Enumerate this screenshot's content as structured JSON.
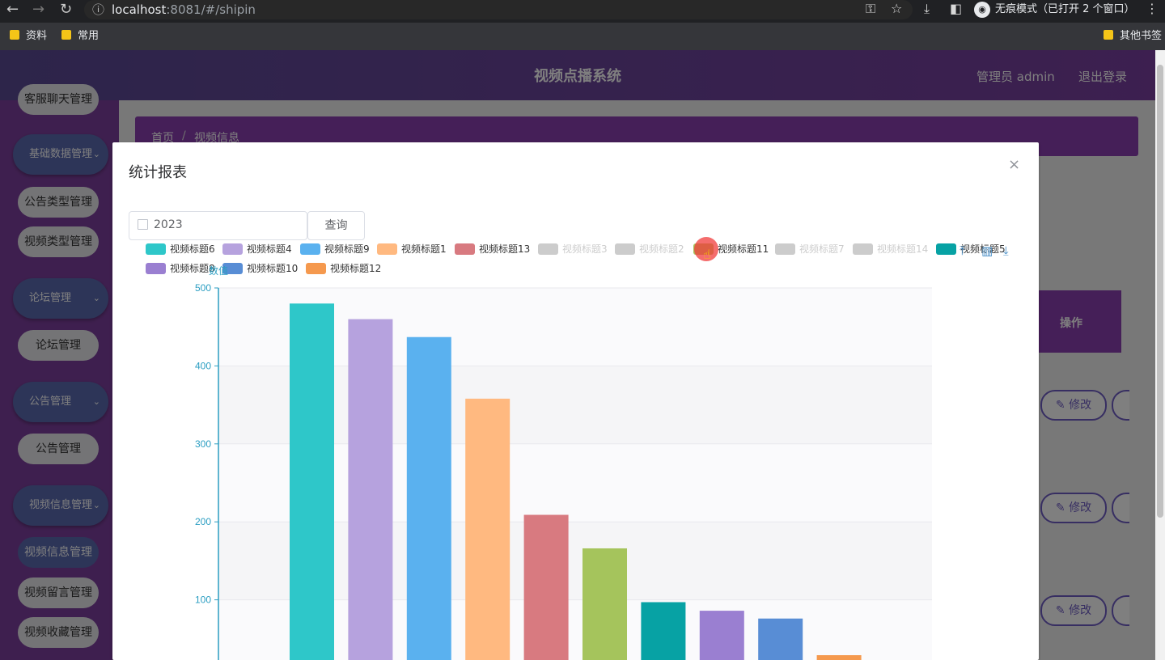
{
  "browser": {
    "url_host": "localhost",
    "url_port": ":8081",
    "url_path": "/#/shipin",
    "incognito_label": "无痕模式（已打开 2 个窗口）",
    "bookmarks": [
      "资料",
      "常用"
    ],
    "other_bookmarks": "其他书签"
  },
  "header": {
    "title": "视频点播系统",
    "user": "管理员 admin",
    "logout": "退出登录"
  },
  "sidebar": {
    "top_cut": "客服聊天管理",
    "groups": [
      {
        "label": "基础数据管理",
        "items": [
          "公告类型管理",
          "视频类型管理"
        ]
      },
      {
        "label": "论坛管理",
        "items": [
          "论坛管理"
        ]
      },
      {
        "label": "公告管理",
        "items": [
          "公告管理"
        ]
      },
      {
        "label": "视频信息管理",
        "items": [
          "视频信息管理",
          "视频留言管理",
          "视频收藏管理"
        ]
      }
    ]
  },
  "breadcrumb": {
    "home": "首页",
    "sep": "/",
    "current": "视频信息"
  },
  "table": {
    "op_header": "操作",
    "edit_label": "✎ 修改"
  },
  "dialog": {
    "title": "统计报表",
    "close": "×",
    "date_value": "2023",
    "query_label": "查询"
  },
  "chart_data": {
    "type": "bar",
    "ylabel": "数值",
    "ylim": [
      0,
      500
    ],
    "yticks": [
      100,
      200,
      300,
      400,
      500
    ],
    "legend": [
      {
        "name": "视频标题6",
        "color": "#2ec7c9",
        "active": true
      },
      {
        "name": "视频标题4",
        "color": "#b6a2de",
        "active": true
      },
      {
        "name": "视频标题9",
        "color": "#5ab1ef",
        "active": true
      },
      {
        "name": "视频标题1",
        "color": "#ffb980",
        "active": true
      },
      {
        "name": "视频标题13",
        "color": "#d87a80",
        "active": true
      },
      {
        "name": "视频标题3",
        "color": "#cccccc",
        "active": false
      },
      {
        "name": "视频标题2",
        "color": "#cccccc",
        "active": false
      },
      {
        "name": "视频标题11",
        "color": "#a5c45c",
        "active": true
      },
      {
        "name": "视频标题7",
        "color": "#cccccc",
        "active": false
      },
      {
        "name": "视频标题14",
        "color": "#cccccc",
        "active": false
      },
      {
        "name": "视频标题5",
        "color": "#07a2a4",
        "active": true
      },
      {
        "name": "视频标题8",
        "color": "#9a7fd1",
        "active": true
      },
      {
        "name": "视频标题10",
        "color": "#588dd5",
        "active": true
      },
      {
        "name": "视频标题12",
        "color": "#f5994e",
        "active": true
      }
    ],
    "series": [
      {
        "name": "视频标题6",
        "value": 480,
        "color": "#2ec7c9"
      },
      {
        "name": "视频标题4",
        "value": 460,
        "color": "#b6a2de"
      },
      {
        "name": "视频标题9",
        "value": 437,
        "color": "#5ab1ef"
      },
      {
        "name": "视频标题1",
        "value": 358,
        "color": "#ffb980"
      },
      {
        "name": "视频标题13",
        "value": 209,
        "color": "#d87a80"
      },
      {
        "name": "视频标题11",
        "value": 166,
        "color": "#a5c45c"
      },
      {
        "name": "视频标题5",
        "value": 97,
        "color": "#07a2a4"
      },
      {
        "name": "视频标题8",
        "value": 86,
        "color": "#9a7fd1"
      },
      {
        "name": "视频标题10",
        "value": 76,
        "color": "#588dd5"
      },
      {
        "name": "视频标题12",
        "value": 29,
        "color": "#f5994e"
      }
    ],
    "grid": true
  }
}
